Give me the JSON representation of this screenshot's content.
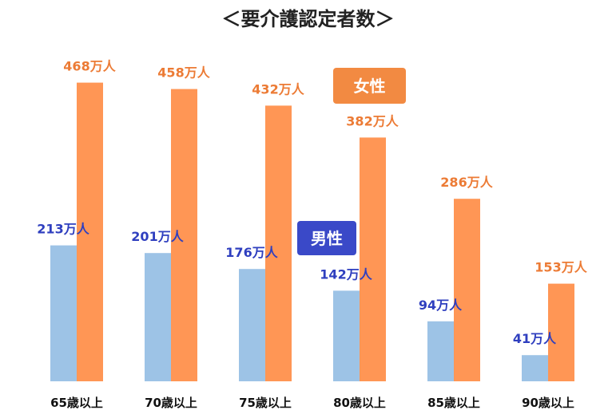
{
  "chart_data": {
    "type": "bar",
    "title": "＜要介護認定者数＞",
    "categories": [
      "65歳以上",
      "70歳以上",
      "75歳以上",
      "80歳以上",
      "85歳以上",
      "90歳以上"
    ],
    "series": [
      {
        "name": "男性",
        "values": [
          213,
          201,
          176,
          142,
          94,
          41
        ],
        "labels": [
          "213万人",
          "201万人",
          "176万人",
          "142万人",
          "94万人",
          "41万人"
        ],
        "color": "#9dc3e6",
        "label_color": "#2f3fbf",
        "legend_color": "#3a49c8"
      },
      {
        "name": "女性",
        "values": [
          468,
          458,
          432,
          382,
          286,
          153
        ],
        "labels": [
          "468万人",
          "458万人",
          "432万人",
          "382万人",
          "286万人",
          "153万人"
        ],
        "color": "#ff9655",
        "label_color": "#ec7b35",
        "legend_color": "#f28a42"
      }
    ],
    "xlabel": "",
    "ylabel": "",
    "ylim": [
      0,
      500
    ],
    "grid": false,
    "legend": "inline"
  }
}
